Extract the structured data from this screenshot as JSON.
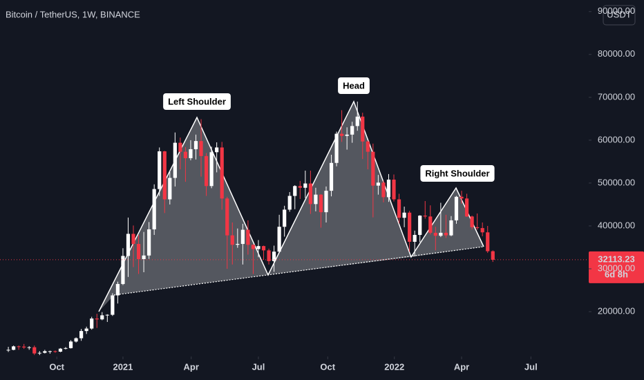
{
  "chart_data": {
    "type": "candlestick",
    "title": "Bitcoin / TetherUS, 1W, BINANCE",
    "currency": "USDT",
    "countdown": "6d 8h",
    "up_color": "#ffffff",
    "down_color": "#f23645",
    "grid": false,
    "annotations": [
      "Left Shoulder",
      "Head",
      "Right Shoulder"
    ],
    "open": [
      11030,
      11100,
      11900,
      11850,
      11650,
      11700,
      10250,
      10400,
      10780,
      10780,
      10670,
      11370,
      11500,
      13030,
      13800,
      15480,
      16060,
      18400,
      18200,
      19150,
      19270,
      23800,
      26450,
      33000,
      38150,
      35800,
      32250,
      33100,
      39200,
      48600,
      57400,
      46200,
      51200,
      59400,
      57300,
      55800,
      57900,
      59800,
      56300,
      49300,
      57200,
      58300,
      46400,
      37800,
      35600,
      35800,
      39100,
      35600,
      34600,
      35300,
      34300,
      31800,
      34000,
      39800,
      43800,
      47000,
      49300,
      48900,
      49900,
      45100,
      47300,
      43200,
      48200,
      54700,
      61500,
      61000,
      61300,
      63300,
      65500,
      59700,
      57300,
      49400,
      50100,
      46700,
      50800,
      46200,
      41900,
      43100,
      36300,
      37900,
      42400,
      42200,
      38400,
      37700,
      38400,
      37800,
      41300,
      46800,
      46400,
      42200,
      39700,
      39500,
      38500,
      34100
    ],
    "high": [
      11800,
      12100,
      12100,
      12470,
      11950,
      12100,
      10800,
      11100,
      10900,
      10950,
      11500,
      11740,
      13350,
      14000,
      15970,
      16500,
      18800,
      19500,
      19900,
      19400,
      24300,
      27000,
      34800,
      41950,
      40100,
      37900,
      38600,
      40900,
      49700,
      58300,
      57500,
      52600,
      61800,
      60600,
      58400,
      60000,
      61300,
      64900,
      57000,
      58500,
      59500,
      59600,
      46800,
      40800,
      39400,
      40500,
      41300,
      35700,
      36700,
      35400,
      34700,
      35400,
      42600,
      44700,
      47900,
      49500,
      50500,
      52900,
      52900,
      48900,
      47400,
      49200,
      56600,
      62000,
      67000,
      63000,
      64300,
      69000,
      66400,
      59900,
      59200,
      51900,
      50600,
      52100,
      52000,
      47500,
      44500,
      43500,
      38900,
      42500,
      45800,
      44800,
      39800,
      45400,
      42600,
      42300,
      47000,
      48200,
      47500,
      42400,
      42900,
      40800,
      40000,
      34300
    ],
    "low": [
      10600,
      11000,
      11100,
      11300,
      11100,
      9900,
      9870,
      10250,
      10200,
      10400,
      10550,
      11200,
      11400,
      12800,
      13200,
      14800,
      15800,
      16200,
      18000,
      17600,
      19000,
      21900,
      26200,
      28100,
      30400,
      28800,
      29200,
      32300,
      37900,
      47000,
      43000,
      45000,
      49200,
      53200,
      50300,
      55300,
      55500,
      51500,
      47000,
      48800,
      52500,
      43800,
      30000,
      31000,
      34900,
      31000,
      33300,
      28800,
      32700,
      32100,
      31000,
      29300,
      33800,
      37500,
      43300,
      43900,
      46300,
      46500,
      42800,
      43400,
      39600,
      40800,
      46900,
      53900,
      59600,
      57800,
      59400,
      62200,
      55600,
      53200,
      42000,
      47300,
      45500,
      45600,
      45700,
      40600,
      39700,
      34000,
      32900,
      36200,
      41700,
      38000,
      34300,
      37400,
      37200,
      37600,
      40500,
      45200,
      42100,
      39200,
      39100,
      37600,
      33700,
      31600
    ],
    "close": [
      11100,
      11900,
      11850,
      11650,
      11700,
      10250,
      10400,
      10780,
      10780,
      10670,
      11370,
      11500,
      13030,
      13800,
      15480,
      16060,
      18400,
      18200,
      19150,
      19270,
      23800,
      26450,
      33000,
      38150,
      35800,
      32250,
      33100,
      39200,
      48600,
      57400,
      46200,
      51200,
      59400,
      57300,
      55800,
      57900,
      59800,
      56300,
      49300,
      57200,
      58300,
      46400,
      37800,
      35600,
      35800,
      39100,
      35600,
      34600,
      35300,
      34300,
      31800,
      34000,
      39800,
      43800,
      47000,
      49300,
      48900,
      49900,
      45100,
      47300,
      43200,
      48200,
      54700,
      61500,
      61000,
      61300,
      63300,
      65500,
      59700,
      57300,
      49400,
      50100,
      46700,
      50800,
      46200,
      41900,
      43100,
      36300,
      37900,
      42400,
      42200,
      38400,
      37700,
      38400,
      37800,
      41300,
      46800,
      46400,
      42200,
      39700,
      39500,
      38500,
      34100,
      32113.23
    ],
    "xlim": [
      -1.6,
      111.4
    ],
    "xticks": [
      {
        "value": 9.3,
        "label": "Oct"
      },
      {
        "value": 22.0,
        "label": "2021"
      },
      {
        "value": 35.1,
        "label": "Apr"
      },
      {
        "value": 48.0,
        "label": "Jul"
      },
      {
        "value": 61.3,
        "label": "Oct"
      },
      {
        "value": 74.1,
        "label": "2022"
      },
      {
        "value": 87.0,
        "label": "Apr"
      },
      {
        "value": 100.3,
        "label": "Jul"
      }
    ],
    "ylim": [
      9700,
      92700
    ],
    "yticks": [
      {
        "value": 20000,
        "label": "20000.00"
      },
      {
        "value": 30000,
        "label": "30000.00"
      },
      {
        "value": 40000,
        "label": "40000.00"
      },
      {
        "value": 50000,
        "label": "50000.00"
      },
      {
        "value": 60000,
        "label": "60000.00"
      },
      {
        "value": 70000,
        "label": "70000.00"
      },
      {
        "value": 80000,
        "label": "80000.00"
      },
      {
        "value": 90000,
        "label": "90000.00"
      }
    ]
  }
}
